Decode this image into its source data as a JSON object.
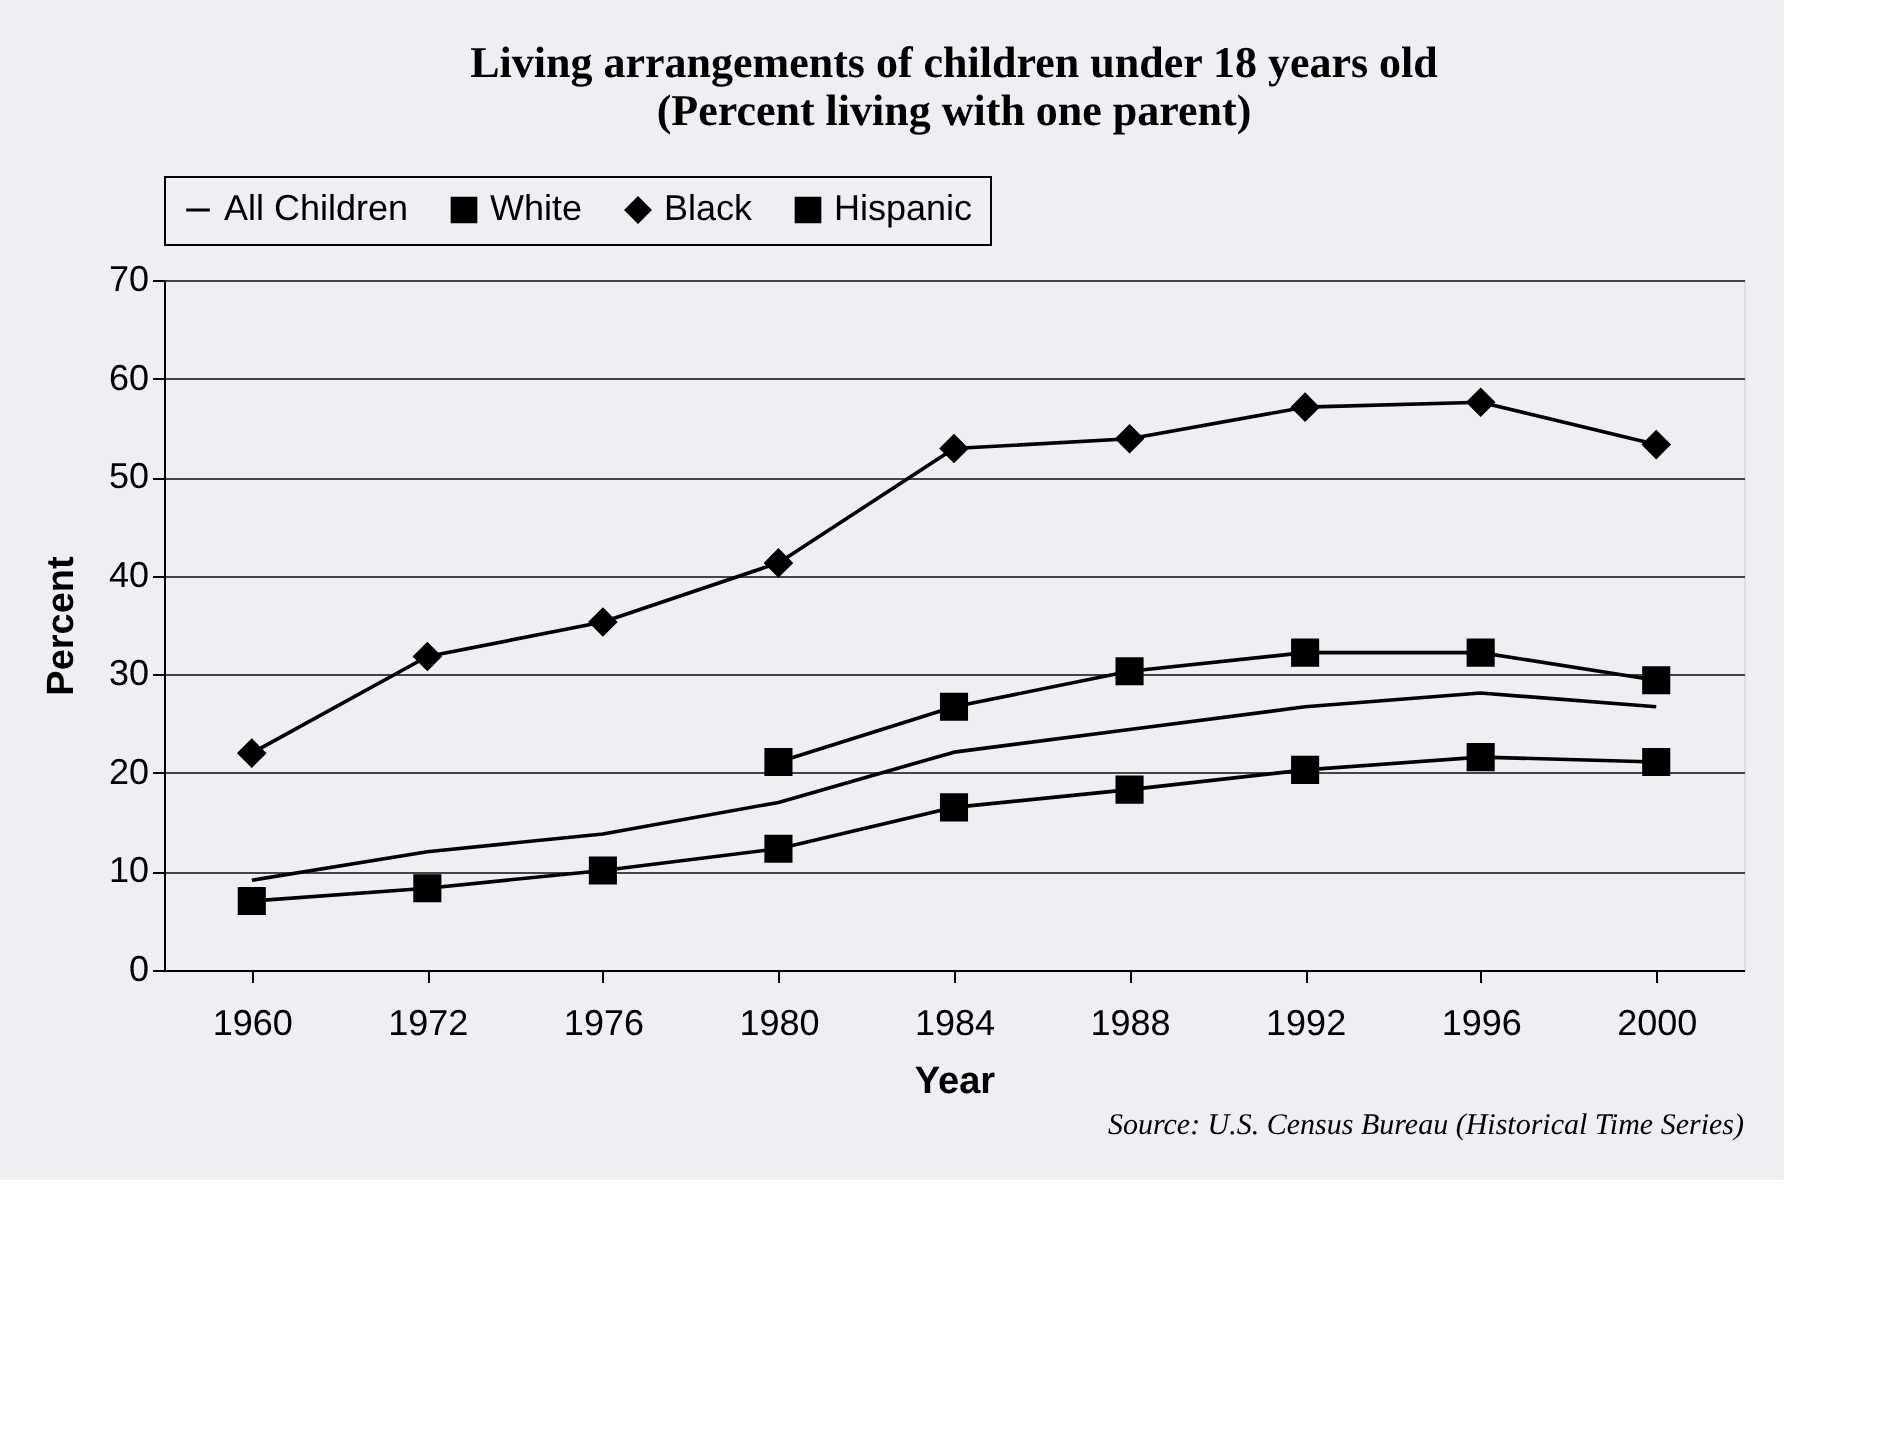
{
  "chart_data": {
    "type": "line",
    "title": [
      "Living arrangements of children under 18 years old",
      "(Percent living with one parent)"
    ],
    "xlabel": "Year",
    "ylabel": "Percent",
    "categories": [
      "1960",
      "1972",
      "1976",
      "1980",
      "1984",
      "1988",
      "1992",
      "1996",
      "2000"
    ],
    "series": [
      {
        "name": "All Children",
        "color": "#000000",
        "marker": "none",
        "values": [
          9.1,
          12.0,
          13.8,
          17.0,
          22.1,
          24.4,
          26.7,
          28.1,
          26.7
        ]
      },
      {
        "name": "White",
        "color": "#000000",
        "marker": "square",
        "values": [
          7.0,
          8.3,
          10.1,
          12.3,
          16.5,
          18.3,
          20.3,
          21.6,
          21.1
        ]
      },
      {
        "name": "Black",
        "color": "#000000",
        "marker": "diamond",
        "values": [
          22.0,
          31.8,
          35.3,
          41.3,
          52.9,
          53.9,
          57.1,
          57.6,
          53.3
        ]
      },
      {
        "name": "Hispanic",
        "color": "#000000",
        "marker": "square",
        "values": [
          null,
          null,
          null,
          21.1,
          26.7,
          30.3,
          32.2,
          32.2,
          29.4
        ]
      }
    ],
    "ylim": [
      0,
      70
    ],
    "yticks": [
      0,
      10,
      20,
      30,
      40,
      50,
      60,
      70
    ],
    "grid": "y",
    "legend": "top",
    "line_style": "solid",
    "annotations": [
      "Source: U.S. Census Bureau (Historical Time Series)"
    ]
  }
}
